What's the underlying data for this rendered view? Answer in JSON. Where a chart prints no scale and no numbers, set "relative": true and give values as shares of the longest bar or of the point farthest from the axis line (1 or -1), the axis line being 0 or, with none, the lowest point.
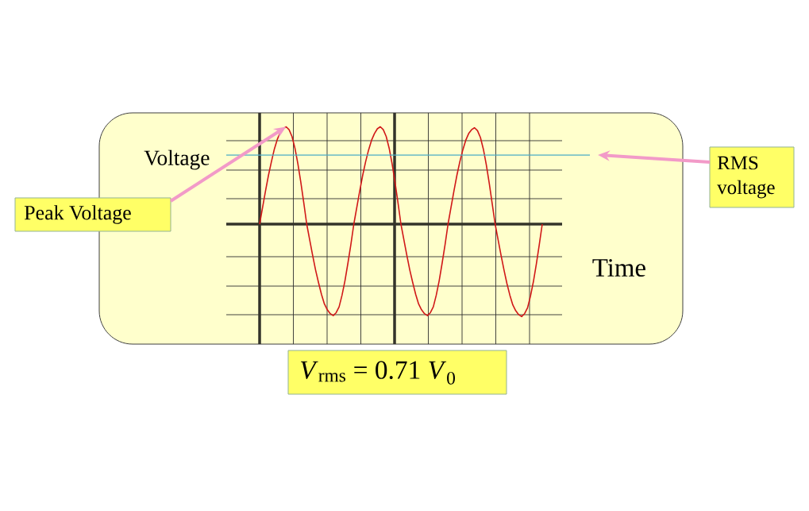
{
  "chart_data": {
    "type": "line",
    "xlabel": "Time",
    "ylabel": "Voltage",
    "relative": true,
    "grid": true,
    "categories": [
      null,
      null,
      null,
      null,
      null,
      null,
      null,
      null,
      null,
      null,
      null,
      null,
      null,
      null,
      null,
      null,
      null,
      null,
      null,
      null,
      null,
      null,
      null,
      null,
      null,
      null,
      null,
      null,
      null,
      null,
      null,
      null,
      null,
      null,
      null,
      null,
      null,
      null,
      null,
      null,
      null,
      null,
      null,
      null,
      null,
      null,
      null,
      null,
      null,
      null,
      null,
      null,
      null,
      null,
      null,
      null,
      null,
      null,
      null,
      null,
      null,
      null,
      null,
      null,
      null,
      null,
      null,
      null,
      null,
      null,
      null,
      null,
      null,
      null,
      null,
      null,
      null,
      null,
      null,
      null,
      null,
      null,
      null,
      null,
      null,
      null,
      null,
      null,
      null,
      null,
      null,
      null,
      null,
      null,
      null,
      null,
      null
    ],
    "values": [
      0,
      0.17,
      0.34,
      0.5,
      0.64,
      0.77,
      0.87,
      0.94,
      0.98,
      1,
      0.97,
      0.9,
      0.78,
      0.62,
      0.43,
      0.22,
      0,
      -0.16,
      -0.32,
      -0.47,
      -0.6,
      -0.72,
      -0.82,
      -0.88,
      -0.92,
      -0.94,
      -0.91,
      -0.85,
      -0.73,
      -0.58,
      -0.4,
      -0.21,
      0,
      0.17,
      0.34,
      0.5,
      0.64,
      0.76,
      0.86,
      0.93,
      0.98,
      1,
      0.97,
      0.9,
      0.78,
      0.62,
      0.43,
      0.22,
      0,
      -0.16,
      -0.32,
      -0.47,
      -0.6,
      -0.72,
      -0.82,
      -0.88,
      -0.92,
      -0.94,
      -0.91,
      -0.85,
      -0.73,
      -0.58,
      -0.4,
      -0.21,
      0,
      0.17,
      0.34,
      0.5,
      0.64,
      0.76,
      0.86,
      0.93,
      0.97,
      0.99,
      0.96,
      0.89,
      0.77,
      0.61,
      0.42,
      0.21,
      0,
      -0.16,
      -0.32,
      -0.47,
      -0.61,
      -0.73,
      -0.83,
      -0.89,
      -0.93,
      -0.95,
      -0.92,
      -0.86,
      -0.74,
      -0.59,
      -0.41,
      -0.21,
      0
    ],
    "color": "#d01818",
    "ref_lines": [
      {
        "axis": "y",
        "value": 0.71,
        "color": "#4bacc6"
      }
    ],
    "annotations": [
      "Peak Voltage",
      "RMS voltage",
      "*V*$_{rms}$ = 0.71 *V*$_{0}$"
    ]
  }
}
